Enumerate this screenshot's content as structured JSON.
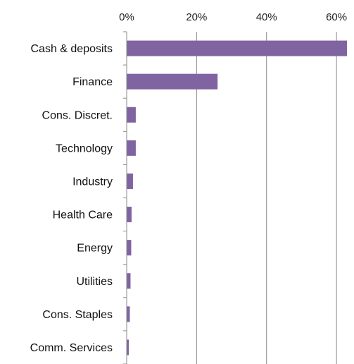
{
  "chart_data": {
    "type": "bar",
    "orientation": "horizontal",
    "title": "",
    "xlabel": "",
    "ylabel": "",
    "categories": [
      "Cash & deposits",
      "Finance",
      "Cons. Discret.",
      "Technology",
      "Industry",
      "Health Care",
      "Energy",
      "Utilities",
      "Cons. Staples",
      "Comm. Services"
    ],
    "values": [
      63,
      26,
      2.6,
      2.6,
      1.8,
      1.4,
      1.3,
      1.1,
      0.9,
      0.6
    ],
    "value_unit": "%",
    "xlim": [
      0,
      63
    ],
    "x_ticks": [
      0,
      20,
      40,
      60
    ],
    "x_tick_labels": [
      "0%",
      "20%",
      "40%",
      "60%"
    ],
    "x_axis_position": "top",
    "grid": "vertical",
    "legend": "none",
    "bar_color": "#8064a2"
  }
}
